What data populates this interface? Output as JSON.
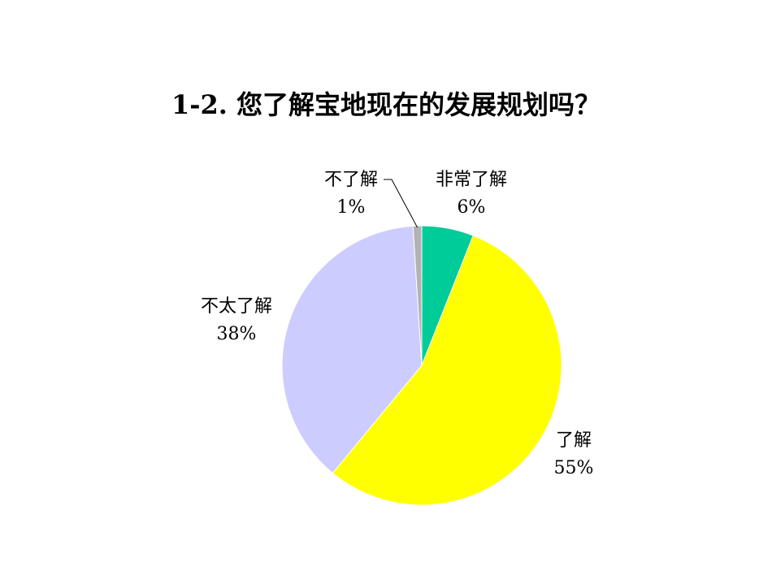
{
  "chart_data": {
    "type": "pie",
    "title": "1-2.   您了解宝地现在的发展规划吗？",
    "slices": [
      {
        "label": "非常了解",
        "value": 6,
        "value_label": "6%",
        "color": "#00CC99"
      },
      {
        "label": "了解",
        "value": 55,
        "value_label": "55%",
        "color": "#FFFF00"
      },
      {
        "label": "不太了解",
        "value": 38,
        "value_label": "38%",
        "color": "#CCCCFF"
      },
      {
        "label": "不了解",
        "value": 1,
        "value_label": "1%",
        "color": "#B2B2B2"
      }
    ],
    "start": "12 o'clock",
    "direction": "clockwise",
    "legend": "none"
  }
}
